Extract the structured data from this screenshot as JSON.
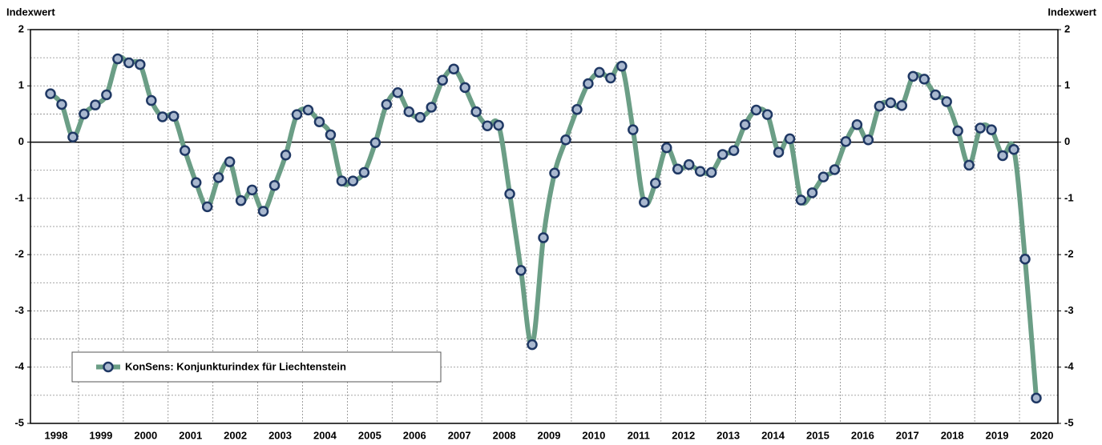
{
  "chart_data": {
    "type": "line",
    "y_label": "Indexwert",
    "categories": [
      "1998",
      null,
      null,
      null,
      "1999",
      null,
      null,
      null,
      "2000",
      null,
      null,
      null,
      "2001",
      null,
      null,
      null,
      "2002",
      null,
      null,
      null,
      "2003",
      null,
      null,
      null,
      "2004",
      null,
      null,
      null,
      "2005",
      null,
      null,
      null,
      "2006",
      null,
      null,
      null,
      "2007",
      null,
      null,
      null,
      "2008",
      null,
      null,
      null,
      "2009",
      null,
      null,
      null,
      "2010",
      null,
      null,
      null,
      "2011",
      null,
      null,
      null,
      "2012",
      null,
      null,
      null,
      "2013",
      null,
      null,
      null,
      "2014",
      null,
      null,
      null,
      "2015",
      null,
      null,
      null,
      "2016",
      null,
      null,
      null,
      "2017",
      null,
      null,
      null,
      "2018",
      null,
      null,
      null,
      "2019",
      null,
      null,
      null,
      "2020"
    ],
    "series": [
      {
        "name": "KonSens: Konjunkturindex für Liechtenstein",
        "color": "#6b9e86",
        "marker_fill": "#a9b8cf",
        "marker_edge": "#1f3864",
        "values": [
          0.86,
          0.67,
          0.09,
          0.5,
          0.66,
          0.84,
          1.48,
          1.41,
          1.38,
          0.74,
          0.45,
          0.46,
          -0.15,
          -0.72,
          -1.15,
          -0.63,
          -0.35,
          -1.04,
          -0.85,
          -1.23,
          -0.77,
          -0.23,
          0.49,
          0.57,
          0.36,
          0.13,
          -0.69,
          -0.69,
          -0.54,
          -0.01,
          0.67,
          0.88,
          0.54,
          0.44,
          0.62,
          1.1,
          1.3,
          0.97,
          0.54,
          0.29,
          0.3,
          -0.92,
          -2.28,
          -3.6,
          -1.7,
          -0.55,
          0.04,
          0.58,
          1.04,
          1.24,
          1.14,
          1.35,
          0.22,
          -1.07,
          -0.73,
          -0.1,
          -0.48,
          -0.4,
          -0.52,
          -0.54,
          -0.22,
          -0.15,
          0.31,
          0.57,
          0.49,
          -0.18,
          0.06,
          -1.03,
          -0.9,
          -0.62,
          -0.49,
          0.01,
          0.31,
          0.04,
          0.64,
          0.7,
          0.65,
          1.17,
          1.12,
          0.84,
          0.72,
          0.2,
          -0.41,
          0.25,
          0.22,
          -0.24,
          -0.13,
          -2.08,
          -4.55
        ]
      }
    ],
    "ylim": [
      -5,
      2
    ],
    "yticks": [
      2,
      1,
      0,
      -1,
      -2,
      -3,
      -4,
      -5
    ],
    "y_minor_ticks": [
      1.5,
      0.5,
      -0.5,
      -1.5,
      -2.5,
      -3.5,
      -4.5
    ],
    "grid": true,
    "legend": "lower left"
  }
}
